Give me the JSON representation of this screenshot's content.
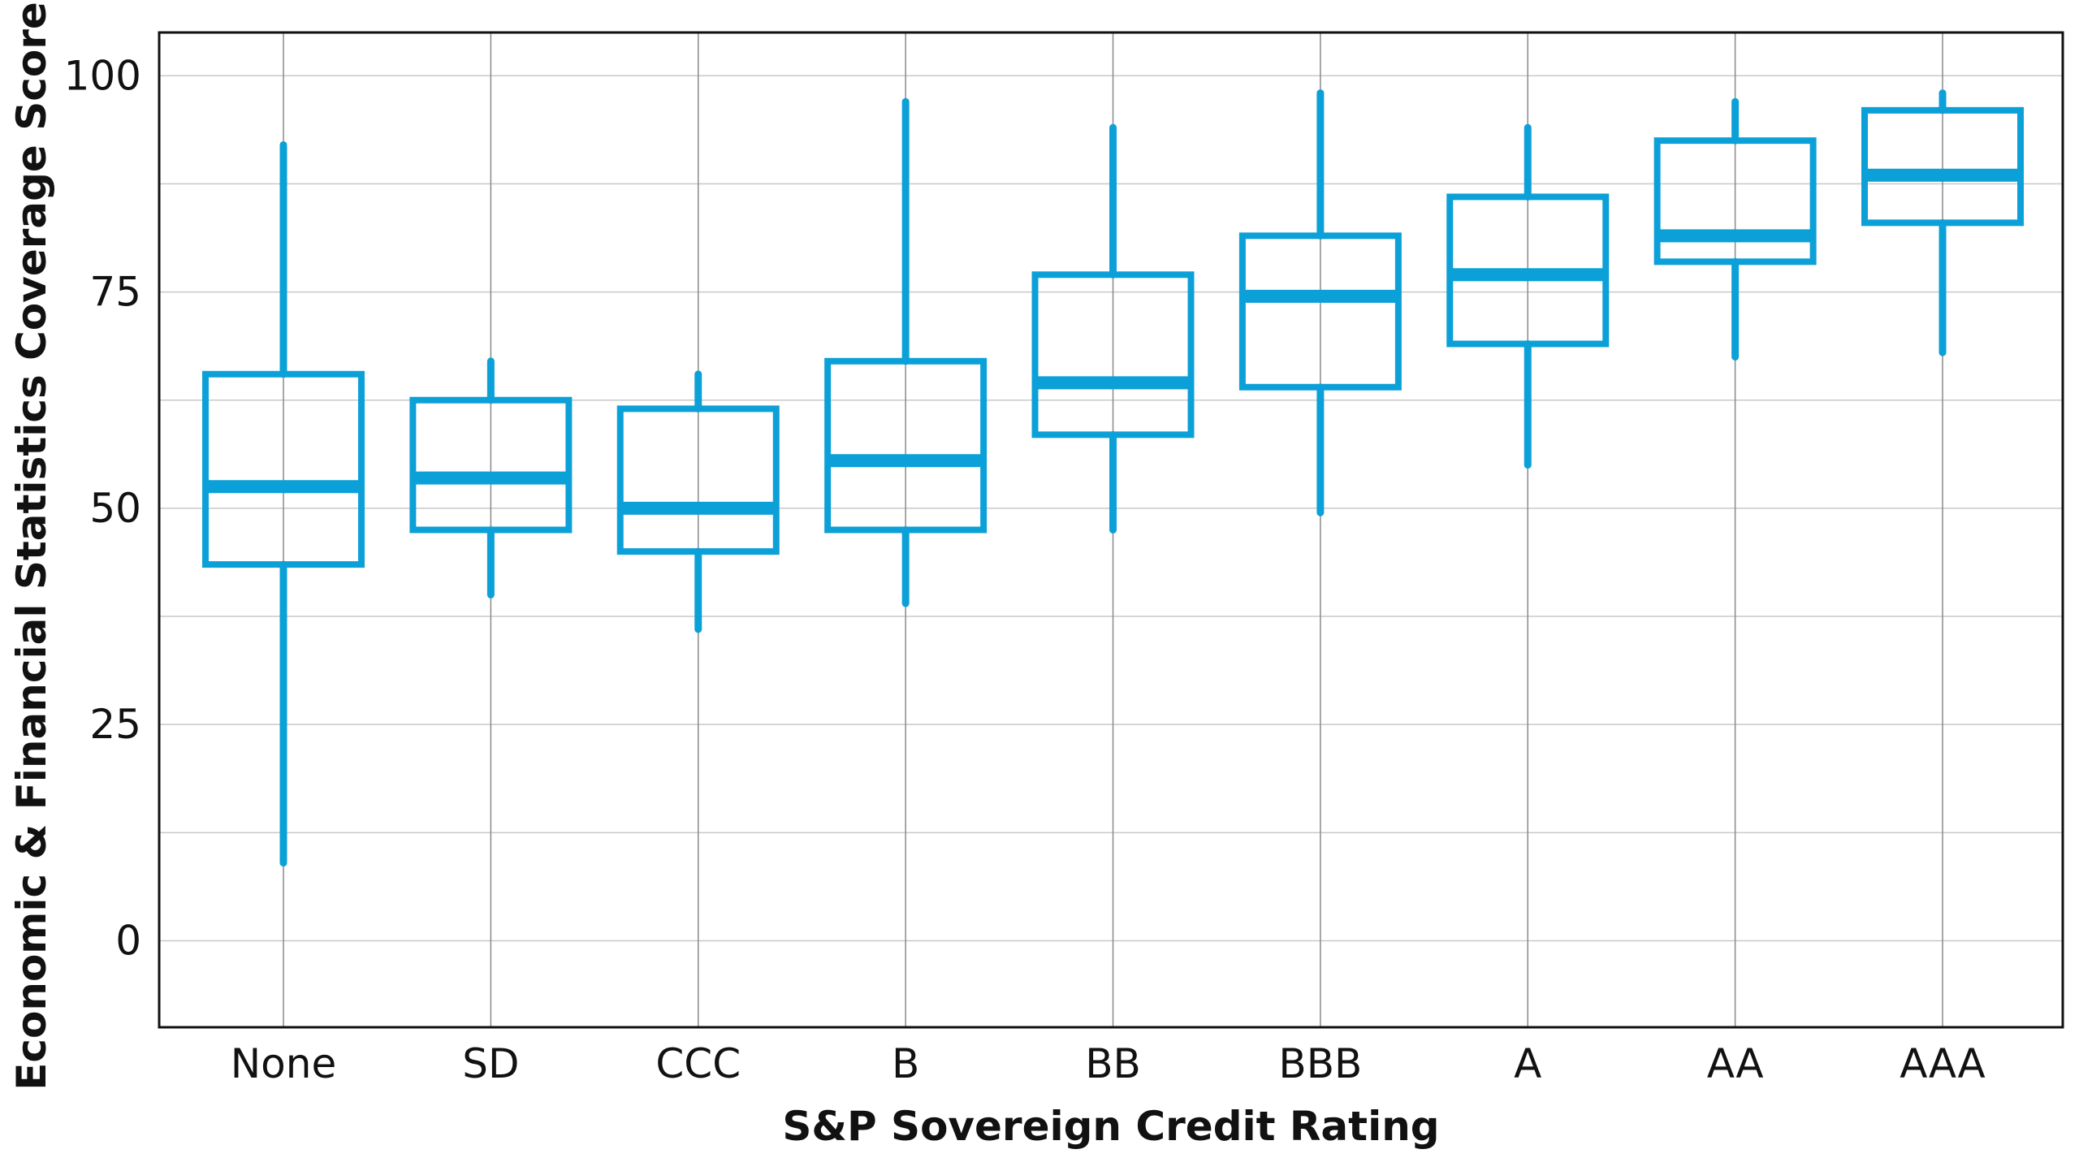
{
  "chart_data": {
    "type": "box",
    "title": "",
    "xlabel": "S&P Sovereign Credit Rating",
    "ylabel": "Economic & Financial Statistics Coverage Score",
    "ylim": [
      -10,
      105
    ],
    "yticks": [
      0,
      25,
      50,
      75,
      100
    ],
    "ytick_labels": [
      "0",
      "25",
      "50",
      "75",
      "100"
    ],
    "minor_gridlines": [
      12.5,
      37.5,
      62.5,
      87.5
    ],
    "grid": true,
    "legend": "none",
    "color": "#0ca0d8",
    "categories": [
      "None",
      "SD",
      "CCC",
      "B",
      "BB",
      "BBB",
      "A",
      "AA",
      "AAA"
    ],
    "boxes": [
      {
        "category": "None",
        "min": 9,
        "q1": 43.5,
        "median": 52.5,
        "q3": 65.5,
        "max": 92
      },
      {
        "category": "SD",
        "min": 40,
        "q1": 47.5,
        "median": 53.5,
        "q3": 62.5,
        "max": 67
      },
      {
        "category": "CCC",
        "min": 36,
        "q1": 45,
        "median": 50,
        "q3": 61.5,
        "max": 65.5
      },
      {
        "category": "B",
        "min": 39,
        "q1": 47.5,
        "median": 55.5,
        "q3": 67,
        "max": 97
      },
      {
        "category": "BB",
        "min": 47.5,
        "q1": 58.5,
        "median": 64.5,
        "q3": 77,
        "max": 94
      },
      {
        "category": "BBB",
        "min": 49.5,
        "q1": 64,
        "median": 74.5,
        "q3": 81.5,
        "max": 98
      },
      {
        "category": "A",
        "min": 55,
        "q1": 69,
        "median": 77,
        "q3": 86,
        "max": 94
      },
      {
        "category": "AA",
        "min": 67.5,
        "q1": 78.5,
        "median": 81.5,
        "q3": 92.5,
        "max": 97
      },
      {
        "category": "AAA",
        "min": 68,
        "q1": 83,
        "median": 88.5,
        "q3": 96,
        "max": 98
      }
    ]
  }
}
